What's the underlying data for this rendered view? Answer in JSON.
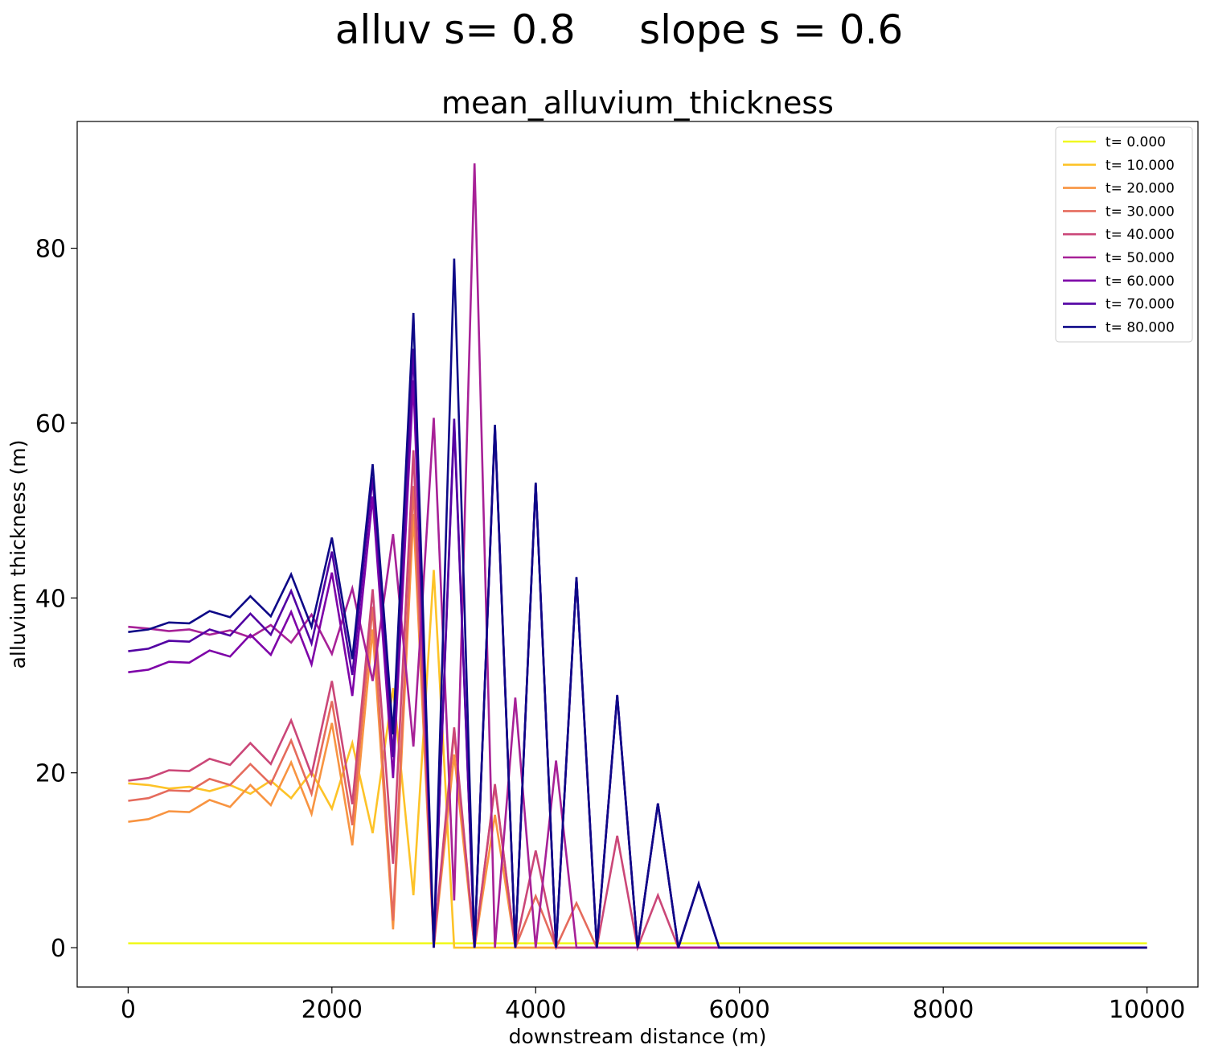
{
  "suptitle": "alluv s= 0.8     slope s = 0.6",
  "chart_data": {
    "type": "line",
    "title": "mean_alluvium_thickness",
    "xlabel": "downstream distance (m)",
    "ylabel": "alluvium thickness (m)",
    "xlim": [
      -500,
      10500
    ],
    "ylim": [
      -4.5,
      94.5
    ],
    "xticks": [
      0,
      2000,
      4000,
      6000,
      8000,
      10000
    ],
    "xtick_labels": [
      "0",
      "2000",
      "4000",
      "6000",
      "8000",
      "10000"
    ],
    "yticks": [
      0,
      20,
      40,
      60,
      80
    ],
    "ytick_labels": [
      "0",
      "20",
      "40",
      "60",
      "80"
    ],
    "grid": false,
    "legend_position": "top-right",
    "x": [
      0,
      200,
      400,
      600,
      800,
      1000,
      1200,
      1400,
      1600,
      1800,
      2000,
      2200,
      2400,
      2600,
      2800,
      3000,
      3200,
      3400,
      3600,
      3800,
      4000,
      4200,
      4400,
      4600,
      4800,
      5000,
      5200,
      5400,
      5600,
      5800,
      6000,
      6200,
      6400,
      6600,
      6800,
      7000,
      7200,
      7400,
      7600,
      7800,
      8000,
      8200,
      8400,
      8600,
      8800,
      9000,
      9200,
      9400,
      9600,
      9800,
      10000
    ],
    "series": [
      {
        "name": "t= 0.000",
        "color": "#f0f921",
        "values": [
          0.5,
          0.5,
          0.5,
          0.5,
          0.5,
          0.5,
          0.5,
          0.5,
          0.5,
          0.5,
          0.5,
          0.5,
          0.5,
          0.5,
          0.5,
          0.5,
          0.5,
          0.5,
          0.5,
          0.5,
          0.5,
          0.5,
          0.5,
          0.5,
          0.5,
          0.5,
          0.5,
          0.5,
          0.5,
          0.5,
          0.5,
          0.5,
          0.5,
          0.5,
          0.5,
          0.5,
          0.5,
          0.5,
          0.5,
          0.5,
          0.5,
          0.5,
          0.5,
          0.5,
          0.5,
          0.5,
          0.5,
          0.5,
          0.5,
          0.5,
          0.5
        ]
      },
      {
        "name": "t= 10.000",
        "color": "#fdc328",
        "values": [
          18.8,
          18.6,
          18.2,
          18.4,
          17.9,
          18.6,
          17.6,
          19.1,
          17.1,
          20.1,
          15.9,
          23.4,
          13.1,
          29.7,
          6.0,
          43.2,
          0,
          0,
          0,
          0,
          0,
          0,
          0,
          0,
          0,
          0,
          0,
          0,
          0,
          0,
          0,
          0,
          0,
          0,
          0,
          0,
          0,
          0,
          0,
          0,
          0,
          0,
          0,
          0,
          0,
          0,
          0,
          0,
          0,
          0,
          0
        ]
      },
      {
        "name": "t= 20.000",
        "color": "#f89441",
        "values": [
          14.4,
          14.7,
          15.6,
          15.5,
          16.9,
          16.1,
          18.6,
          16.3,
          21.2,
          15.3,
          25.7,
          11.7,
          36.4,
          2.1,
          49.6,
          0,
          22.1,
          0,
          15.2,
          0,
          0,
          0,
          0,
          0,
          0,
          0,
          0,
          0,
          0,
          0,
          0,
          0,
          0,
          0,
          0,
          0,
          0,
          0,
          0,
          0,
          0,
          0,
          0,
          0,
          0,
          0,
          0,
          0,
          0,
          0,
          0
        ]
      },
      {
        "name": "t= 30.000",
        "color": "#e56b5d",
        "values": [
          16.8,
          17.1,
          18.0,
          17.9,
          19.3,
          18.6,
          21.0,
          18.7,
          23.7,
          17.6,
          28.2,
          14.0,
          39.0,
          3.1,
          52.8,
          0,
          24.7,
          0,
          18.5,
          0,
          5.9,
          0,
          5.1,
          0,
          0,
          0,
          0,
          0,
          0,
          0,
          0,
          0,
          0,
          0,
          0,
          0,
          0,
          0,
          0,
          0,
          0,
          0,
          0,
          0,
          0,
          0,
          0,
          0,
          0,
          0,
          0
        ]
      },
      {
        "name": "t= 40.000",
        "color": "#cb4778",
        "values": [
          19.1,
          19.4,
          20.3,
          20.2,
          21.6,
          20.9,
          23.4,
          21.0,
          26.0,
          19.8,
          30.5,
          16.4,
          41.0,
          9.6,
          56.9,
          0.2,
          25.2,
          0,
          18.7,
          0,
          11.1,
          0,
          0,
          0,
          12.8,
          0,
          6.0,
          0,
          0,
          0,
          0,
          0,
          0,
          0,
          0,
          0,
          0,
          0,
          0,
          0,
          0,
          0,
          0,
          0,
          0,
          0,
          0,
          0,
          0,
          0,
          0
        ]
      },
      {
        "name": "t= 50.000",
        "color": "#a72197",
        "values": [
          36.7,
          36.5,
          36.2,
          36.4,
          35.8,
          36.3,
          35.5,
          36.9,
          34.9,
          38.1,
          33.6,
          41.1,
          30.5,
          47.3,
          23.0,
          60.6,
          5.4,
          89.7,
          0,
          28.6,
          0,
          21.4,
          0,
          0,
          0,
          0,
          0,
          0,
          0,
          0,
          0,
          0,
          0,
          0,
          0,
          0,
          0,
          0,
          0,
          0,
          0,
          0,
          0,
          0,
          0,
          0,
          0,
          0,
          0,
          0,
          0
        ]
      },
      {
        "name": "t= 60.000",
        "color": "#7e03a8",
        "values": [
          31.5,
          31.8,
          32.7,
          32.6,
          34.0,
          33.3,
          35.8,
          33.5,
          38.4,
          32.4,
          42.9,
          28.8,
          51.6,
          19.4,
          64.9,
          0,
          60.0,
          0,
          59.5,
          0,
          53.1,
          0,
          42.3,
          0,
          28.9,
          0,
          16.5,
          0,
          7.3,
          0,
          0,
          0,
          0,
          0,
          0,
          0,
          0,
          0,
          0,
          0,
          0,
          0,
          0,
          0,
          0,
          0,
          0,
          0,
          0,
          0,
          0
        ]
      },
      {
        "name": "t= 70.000",
        "color": "#5302a3",
        "values": [
          33.9,
          34.2,
          35.1,
          35.0,
          36.4,
          35.7,
          38.2,
          35.8,
          40.8,
          34.8,
          45.3,
          31.2,
          53.8,
          21.8,
          68.5,
          0,
          60.5,
          0,
          59.6,
          0,
          53.1,
          0,
          42.3,
          0,
          28.8,
          0,
          16.5,
          0,
          7.3,
          0,
          0,
          0,
          0,
          0,
          0,
          0,
          0,
          0,
          0,
          0,
          0,
          0,
          0,
          0,
          0,
          0,
          0,
          0,
          0,
          0,
          0
        ]
      },
      {
        "name": "t= 80.000",
        "color": "#0d0887",
        "values": [
          36.1,
          36.4,
          37.2,
          37.1,
          38.5,
          37.8,
          40.2,
          37.9,
          42.7,
          36.7,
          46.9,
          33.0,
          55.3,
          24.4,
          72.6,
          0,
          78.8,
          0,
          59.8,
          0,
          53.2,
          0,
          42.4,
          0,
          28.9,
          0,
          16.5,
          0,
          7.3,
          0,
          0,
          0,
          0,
          0,
          0,
          0,
          0,
          0,
          0,
          0,
          0,
          0,
          0,
          0,
          0,
          0,
          0,
          0,
          0,
          0,
          0
        ]
      }
    ]
  }
}
